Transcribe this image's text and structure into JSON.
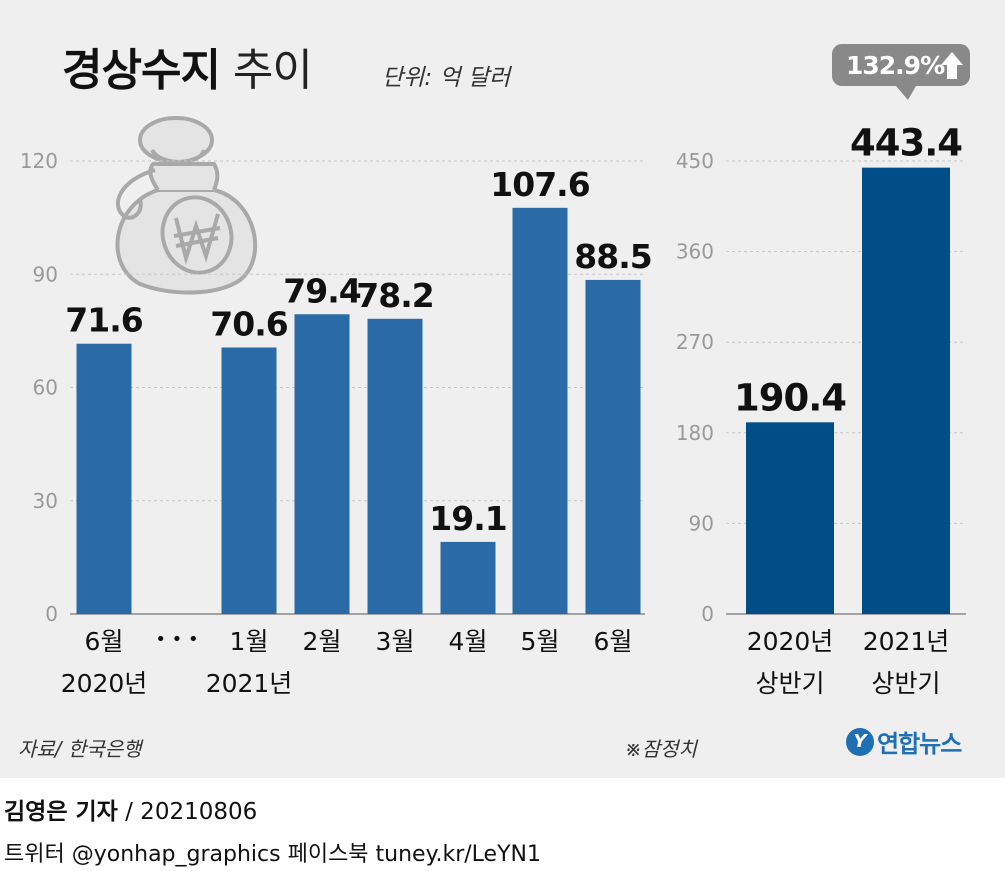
{
  "title": {
    "bold": "경상수지",
    "light": "추이"
  },
  "unit": "단위: 억 달러",
  "source": "자료/ 한국은행",
  "note": "※잠정치",
  "logo": {
    "mark": "Y",
    "text": "연합뉴스"
  },
  "credit": {
    "author": "김영은 기자",
    "date": "/ 20210806",
    "social": "트위터 @yonhap_graphics  페이스북 tuney.kr/LeYN1"
  },
  "colors": {
    "monthly_bar": "#2a6aa6",
    "half_bar": "#004d88",
    "grid": "#c6c6c6",
    "axis_text": "#999999",
    "callout": "#898989"
  },
  "chart_data": [
    {
      "type": "bar",
      "title": "",
      "xlabel": "",
      "ylabel": "",
      "ylim": [
        0,
        120
      ],
      "yticks": [
        "0",
        "30",
        "60",
        "90",
        "120"
      ],
      "gap_marker": "• • •",
      "categories": [
        {
          "label": "6월",
          "sublabel": "2020년",
          "value": 71.6,
          "display": "71.6"
        },
        {
          "label": "1월",
          "sublabel": "2021년",
          "value": 70.6,
          "display": "70.6"
        },
        {
          "label": "2월",
          "sublabel": "",
          "value": 79.4,
          "display": "79.4"
        },
        {
          "label": "3월",
          "sublabel": "",
          "value": 78.2,
          "display": "78.2"
        },
        {
          "label": "4월",
          "sublabel": "",
          "value": 19.1,
          "display": "19.1"
        },
        {
          "label": "5월",
          "sublabel": "",
          "value": 107.6,
          "display": "107.6"
        },
        {
          "label": "6월",
          "sublabel": "",
          "value": 88.5,
          "display": "88.5"
        }
      ]
    },
    {
      "type": "bar",
      "title": "",
      "xlabel": "",
      "ylabel": "",
      "ylim": [
        0,
        450
      ],
      "yticks": [
        "0",
        "90",
        "180",
        "270",
        "360",
        "450"
      ],
      "categories": [
        {
          "label": "2020년",
          "sublabel": "상반기",
          "value": 190.4,
          "display": "190.4"
        },
        {
          "label": "2021년",
          "sublabel": "상반기",
          "value": 443.4,
          "display": "443.4"
        }
      ],
      "callout": {
        "text": "132.9%",
        "arrow": "up-arrow-icon"
      }
    }
  ]
}
